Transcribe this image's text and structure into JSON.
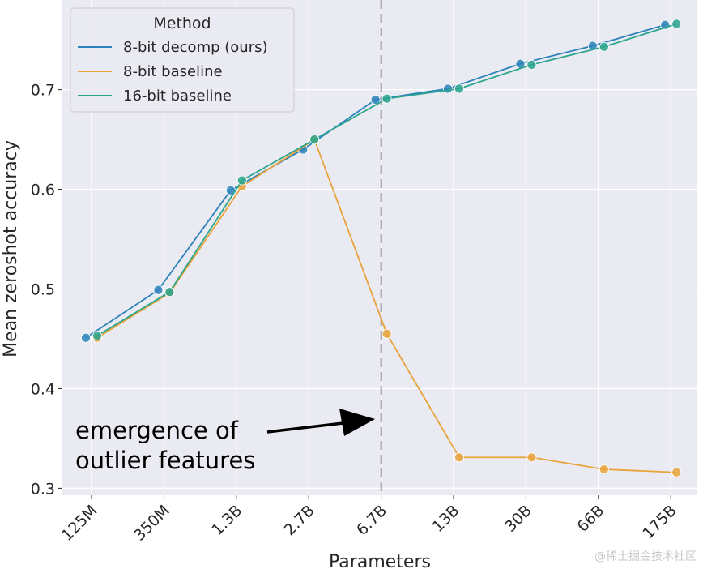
{
  "chart_data": {
    "type": "line",
    "title": "",
    "xlabel": "Parameters",
    "ylabel": "Mean zeroshot accuracy",
    "categories": [
      "125M",
      "350M",
      "1.3B",
      "2.7B",
      "6.7B",
      "13B",
      "30B",
      "66B",
      "175B"
    ],
    "ylim": [
      0.293,
      0.79
    ],
    "yticks": [
      0.3,
      0.4,
      0.5,
      0.6,
      0.7
    ],
    "grid": true,
    "legend": {
      "title": "Method",
      "placement": "top-left"
    },
    "series": [
      {
        "name": "8-bit decomp (ours)",
        "color": "#2b83ba",
        "values": [
          0.451,
          0.499,
          0.599,
          0.64,
          0.69,
          0.701,
          0.726,
          0.744,
          0.765
        ]
      },
      {
        "name": "8-bit baseline",
        "color": "#e8a33b",
        "values": [
          0.451,
          0.496,
          0.603,
          0.65,
          0.455,
          0.331,
          0.331,
          0.319,
          0.316
        ]
      },
      {
        "name": "16-bit baseline",
        "color": "#2ca58d",
        "values": [
          0.453,
          0.497,
          0.609,
          0.65,
          0.691,
          0.701,
          0.725,
          0.743,
          0.766
        ]
      }
    ],
    "vline": {
      "category": "6.7B",
      "style": "dashed"
    },
    "annotation": {
      "lines": [
        "emergence of",
        "outlier features"
      ],
      "arrow_to": "6.7B"
    }
  },
  "watermark": "@稀土掘金技术社区"
}
